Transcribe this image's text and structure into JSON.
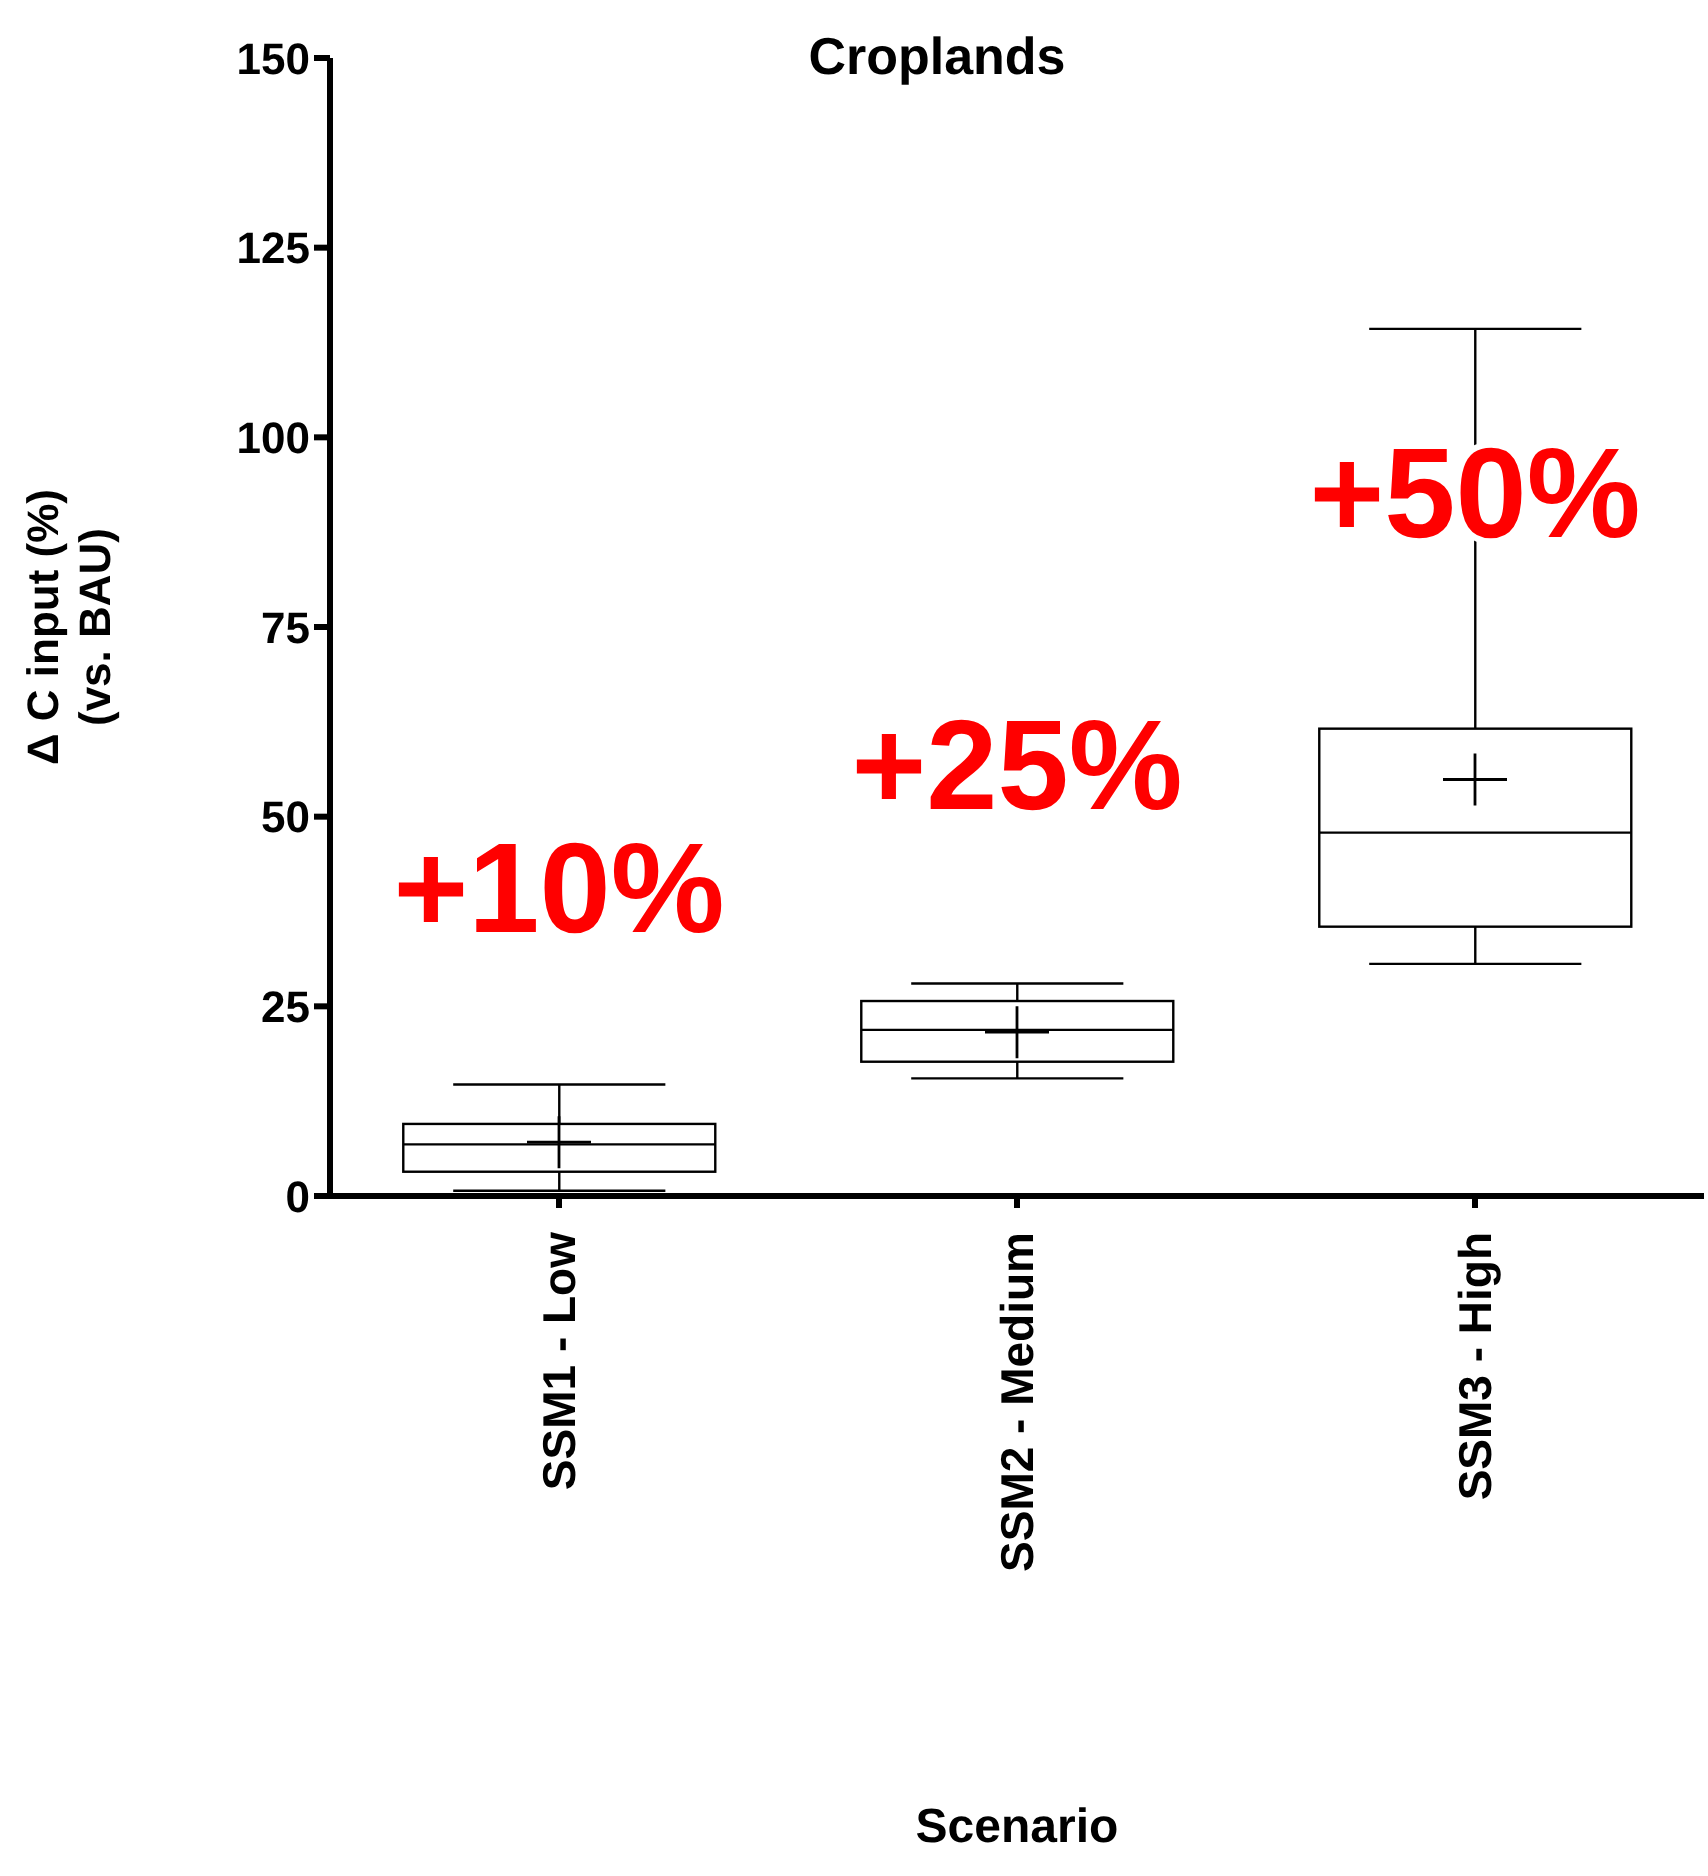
{
  "chart_data": {
    "type": "box",
    "title": "Croplands",
    "xlabel": "Scenario",
    "ylabel": "Δ C input (%)\n(vs. BAU)",
    "categories": [
      "SSM1 - Low",
      "SSM2 - Medium",
      "SSM3 - High"
    ],
    "boxes": [
      {
        "low": 0.7,
        "q1": 3.2,
        "median": 6.8,
        "q3": 9.5,
        "high": 14.7,
        "mean": 7.1
      },
      {
        "low": 15.5,
        "q1": 17.7,
        "median": 21.9,
        "q3": 25.7,
        "high": 28.0,
        "mean": 21.6
      },
      {
        "low": 30.6,
        "q1": 35.5,
        "median": 47.9,
        "q3": 61.6,
        "high": 114.3,
        "mean": 54.9
      }
    ],
    "color": "#000000",
    "ylim": [
      0,
      150
    ],
    "yticks": [
      0,
      25,
      50,
      75,
      100,
      125,
      150
    ],
    "annotations": [
      "+10%",
      "+25%",
      "+50%"
    ]
  }
}
